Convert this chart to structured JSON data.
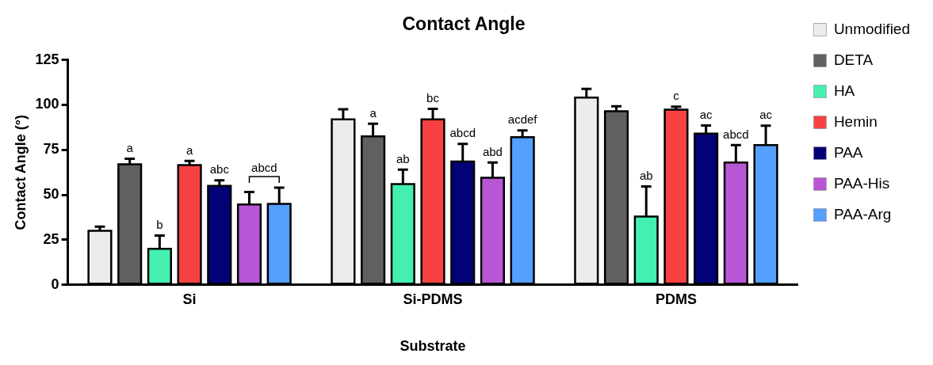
{
  "chart_data": {
    "type": "bar",
    "title": "Contact Angle",
    "xlabel": "Substrate",
    "ylabel": "Contact Angle (°)",
    "categories": [
      "Si",
      "Si-PDMS",
      "PDMS"
    ],
    "series": [
      {
        "name": "Unmodified",
        "color": "#ececec",
        "values": [
          30,
          92,
          104
        ],
        "errors": [
          2.4,
          5.5,
          4.9
        ],
        "value_labels": [
          null,
          null,
          null
        ]
      },
      {
        "name": "DETA",
        "color": "#606060",
        "values": [
          67,
          82.5,
          96.5
        ],
        "errors": [
          3.1,
          7,
          2.7
        ],
        "value_labels": [
          "a",
          "a",
          null
        ]
      },
      {
        "name": "HA",
        "color": "#44f0b0",
        "values": [
          20,
          56,
          38
        ],
        "errors": [
          7.4,
          8,
          16.7
        ],
        "value_labels": [
          "b",
          "ab",
          "ab"
        ]
      },
      {
        "name": "Hemin",
        "color": "#f84242",
        "values": [
          66.5,
          92,
          97.3
        ],
        "errors": [
          2.4,
          5.8,
          1.7
        ],
        "value_labels": [
          "a",
          "bc",
          "c"
        ]
      },
      {
        "name": "PAA",
        "color": "#020177",
        "values": [
          55,
          68.5,
          84
        ],
        "errors": [
          3.1,
          9.8,
          4.5
        ],
        "value_labels": [
          "abc",
          "abcd",
          "ac"
        ]
      },
      {
        "name": "PAA-His",
        "color": "#b857d6",
        "values": [
          44.7,
          59.5,
          68
        ],
        "errors": [
          6.9,
          8.5,
          9.6
        ],
        "value_labels": [
          null,
          "abd",
          "abcd"
        ]
      },
      {
        "name": "PAA-Arg",
        "color": "#559ffd",
        "values": [
          45,
          82,
          77.7
        ],
        "errors": [
          9,
          3.8,
          10.7
        ],
        "value_labels": [
          null,
          "acdef",
          "ac"
        ]
      }
    ],
    "annotations": [
      "abcd"
    ],
    "ylim": [
      0,
      125
    ],
    "yticks": [
      0,
      25,
      50,
      75,
      100,
      125
    ],
    "grid": false,
    "legend": "right"
  }
}
